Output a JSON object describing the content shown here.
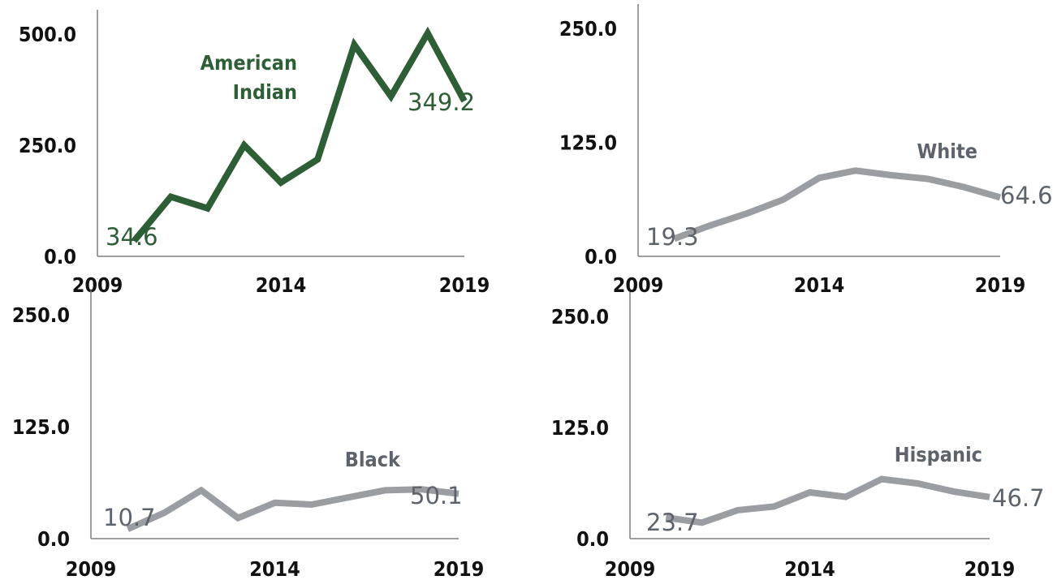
{
  "colors": {
    "american_indian": "#2e5e36",
    "gray_series": "#9a9ea3",
    "gray_label": "#5d636b",
    "axis": "#7f7f7f"
  },
  "chart_data": [
    {
      "type": "line",
      "x": [
        2010,
        2011,
        2012,
        2013,
        2014,
        2015,
        2016,
        2017,
        2018,
        2019
      ],
      "xticks": [
        "2009",
        "2014",
        "2019"
      ],
      "xlim": [
        2009,
        2019
      ],
      "yticks": [
        "0.0",
        "250.0",
        "500.0"
      ],
      "ylim": [
        0,
        500
      ],
      "series": [
        {
          "name": "American Indian",
          "values": [
            34.6,
            134,
            108,
            250,
            166,
            218,
            476,
            360,
            502,
            349.2
          ]
        }
      ],
      "labels": {
        "first": "34.6",
        "last": "349.2"
      }
    },
    {
      "type": "line",
      "x": [
        2010,
        2011,
        2012,
        2013,
        2014,
        2015,
        2016,
        2017,
        2018,
        2019
      ],
      "xticks": [
        "2009",
        "2014",
        "2019"
      ],
      "xlim": [
        2009,
        2019
      ],
      "yticks": [
        "0.0",
        "125.0",
        "250.0"
      ],
      "ylim": [
        0,
        250
      ],
      "series": [
        {
          "name": "White",
          "values": [
            19.3,
            34,
            47,
            62,
            86,
            94,
            89,
            85,
            76,
            64.6
          ]
        }
      ],
      "labels": {
        "first": "19.3",
        "last": "64.6"
      }
    },
    {
      "type": "line",
      "x": [
        2010,
        2011,
        2012,
        2013,
        2014,
        2015,
        2016,
        2017,
        2018,
        2019
      ],
      "xticks": [
        "2009",
        "2014",
        "2019"
      ],
      "xlim": [
        2009,
        2019
      ],
      "yticks": [
        "0.0",
        "125.0",
        "250.0"
      ],
      "ylim": [
        0,
        250
      ],
      "series": [
        {
          "name": "Black",
          "values": [
            10.7,
            29,
            54,
            23,
            40,
            38,
            46,
            54,
            55,
            50.1
          ]
        }
      ],
      "labels": {
        "first": "10.7",
        "last": "50.1"
      }
    },
    {
      "type": "line",
      "x": [
        2010,
        2011,
        2012,
        2013,
        2014,
        2015,
        2016,
        2017,
        2018,
        2019
      ],
      "xticks": [
        "2009",
        "2014",
        "2019"
      ],
      "xlim": [
        2009,
        2019
      ],
      "yticks": [
        "0.0",
        "125.0",
        "250.0"
      ],
      "ylim": [
        0,
        250
      ],
      "series": [
        {
          "name": "Hispanic",
          "values": [
            23.7,
            18,
            32,
            36,
            52,
            47,
            67,
            62,
            53,
            46.7
          ]
        }
      ],
      "labels": {
        "first": "23.7",
        "last": "46.7"
      }
    }
  ]
}
